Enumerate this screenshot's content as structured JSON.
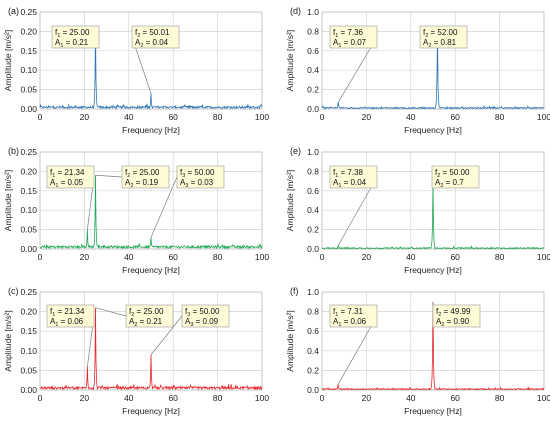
{
  "chart_data": [
    {
      "panel": "(a)",
      "type": "line",
      "color": "#2e75b6",
      "xlabel": "Frequency [Hz]",
      "ylabel": "Amplitude [m/s²]",
      "xlim": [
        0,
        100
      ],
      "ylim": [
        0,
        0.25
      ],
      "xticks": [
        0,
        20,
        40,
        60,
        80,
        100
      ],
      "yticks": [
        0.0,
        0.05,
        0.1,
        0.15,
        0.2,
        0.25
      ],
      "grid": true,
      "noise": 0.006,
      "peaks": [
        {
          "x": 25.0,
          "y": 0.21,
          "lines": [
            {
              "sym": "f",
              "sub": "1",
              "text": " = 25.00"
            },
            {
              "sym": "A",
              "sub": "1",
              "text": " = 0.21"
            }
          ]
        },
        {
          "x": 50.01,
          "y": 0.04,
          "lines": [
            {
              "sym": "f",
              "sub": "2",
              "text": " = 50.01"
            },
            {
              "sym": "A",
              "sub": "2",
              "text": " = 0.04"
            }
          ]
        }
      ]
    },
    {
      "panel": "(b)",
      "type": "line",
      "color": "#1fa855",
      "xlabel": "Frequency [Hz]",
      "ylabel": "Amplitude [m/s²]",
      "xlim": [
        0,
        100
      ],
      "ylim": [
        0,
        0.25
      ],
      "xticks": [
        0,
        20,
        40,
        60,
        80,
        100
      ],
      "yticks": [
        0.0,
        0.05,
        0.1,
        0.15,
        0.2,
        0.25
      ],
      "grid": true,
      "noise": 0.007,
      "peaks": [
        {
          "x": 21.34,
          "y": 0.05,
          "lines": [
            {
              "sym": "f",
              "sub": "1",
              "text": " = 21.34"
            },
            {
              "sym": "A",
              "sub": "1",
              "text": " = 0.05"
            }
          ]
        },
        {
          "x": 25.0,
          "y": 0.19,
          "lines": [
            {
              "sym": "f",
              "sub": "2",
              "text": " = 25.00"
            },
            {
              "sym": "A",
              "sub": "2",
              "text": " = 0.19"
            }
          ]
        },
        {
          "x": 50.0,
          "y": 0.03,
          "lines": [
            {
              "sym": "f",
              "sub": "3",
              "text": " = 50.00"
            },
            {
              "sym": "A",
              "sub": "3",
              "text": " = 0.03"
            }
          ]
        }
      ]
    },
    {
      "panel": "(c)",
      "type": "line",
      "color": "#e8262b",
      "xlabel": "Frequency [Hz]",
      "ylabel": "Amplitude [m/s²]",
      "xlim": [
        0,
        100
      ],
      "ylim": [
        0,
        0.25
      ],
      "xticks": [
        0,
        20,
        40,
        60,
        80,
        100
      ],
      "yticks": [
        0.0,
        0.05,
        0.1,
        0.15,
        0.2,
        0.25
      ],
      "grid": true,
      "noise": 0.007,
      "peaks": [
        {
          "x": 21.34,
          "y": 0.06,
          "lines": [
            {
              "sym": "f",
              "sub": "1",
              "text": " = 21.34"
            },
            {
              "sym": "A",
              "sub": "1",
              "text": " = 0.06"
            }
          ]
        },
        {
          "x": 25.0,
          "y": 0.21,
          "lines": [
            {
              "sym": "f",
              "sub": "2",
              "text": " = 25.00"
            },
            {
              "sym": "A",
              "sub": "2",
              "text": " = 0.21"
            }
          ]
        },
        {
          "x": 50.0,
          "y": 0.09,
          "lines": [
            {
              "sym": "f",
              "sub": "3",
              "text": " = 50.00"
            },
            {
              "sym": "A",
              "sub": "3",
              "text": " = 0.09"
            }
          ]
        }
      ]
    },
    {
      "panel": "(d)",
      "type": "line",
      "color": "#2e75b6",
      "xlabel": "Frequency [Hz]",
      "ylabel": "Amplitude [m/s²]",
      "xlim": [
        0,
        100
      ],
      "ylim": [
        0,
        1
      ],
      "xticks": [
        0,
        20,
        40,
        60,
        80,
        100
      ],
      "yticks": [
        0.0,
        0.2,
        0.4,
        0.6,
        0.8,
        1.0
      ],
      "grid": true,
      "noise": 0.014,
      "peaks": [
        {
          "x": 7.36,
          "y": 0.07,
          "lines": [
            {
              "sym": "f",
              "sub": "1",
              "text": " = 7.36"
            },
            {
              "sym": "A",
              "sub": "1",
              "text": " = 0.07"
            }
          ]
        },
        {
          "x": 52.0,
          "y": 0.81,
          "lines": [
            {
              "sym": "f",
              "sub": "2",
              "text": " = 52.00"
            },
            {
              "sym": "A",
              "sub": "2",
              "text": " = 0.81"
            }
          ]
        }
      ]
    },
    {
      "panel": "(e)",
      "type": "line",
      "color": "#1fa855",
      "xlabel": "Frequency [Hz]",
      "ylabel": "Amplitude [m/s²]",
      "xlim": [
        0,
        100
      ],
      "ylim": [
        0,
        1
      ],
      "xticks": [
        0,
        20,
        40,
        60,
        80,
        100
      ],
      "yticks": [
        0.0,
        0.2,
        0.4,
        0.6,
        0.8,
        1.0
      ],
      "grid": true,
      "noise": 0.012,
      "peaks": [
        {
          "x": 7.38,
          "y": 0.04,
          "lines": [
            {
              "sym": "f",
              "sub": "1",
              "text": " = 7.38"
            },
            {
              "sym": "A",
              "sub": "1",
              "text": " = 0.04"
            }
          ]
        },
        {
          "x": 50.0,
          "y": 0.7,
          "lines": [
            {
              "sym": "f",
              "sub": "2",
              "text": " = 50.00"
            },
            {
              "sym": "A",
              "sub": "2",
              "text": " = 0.7"
            }
          ]
        }
      ]
    },
    {
      "panel": "(f)",
      "type": "line",
      "color": "#e8262b",
      "xlabel": "Frequency [Hz]",
      "ylabel": "Amplitude [m/s²]",
      "xlim": [
        0,
        100
      ],
      "ylim": [
        0,
        1
      ],
      "xticks": [
        0,
        20,
        40,
        60,
        80,
        100
      ],
      "yticks": [
        0.0,
        0.2,
        0.4,
        0.6,
        0.8,
        1.0
      ],
      "grid": true,
      "noise": 0.012,
      "peaks": [
        {
          "x": 7.31,
          "y": 0.06,
          "lines": [
            {
              "sym": "f",
              "sub": "1",
              "text": " = 7.31"
            },
            {
              "sym": "A",
              "sub": "1",
              "text": " = 0.06"
            }
          ]
        },
        {
          "x": 49.99,
          "y": 0.9,
          "lines": [
            {
              "sym": "f",
              "sub": "2",
              "text": " = 49.99"
            },
            {
              "sym": "A",
              "sub": "2",
              "text": " = 0.90"
            }
          ]
        }
      ]
    }
  ]
}
